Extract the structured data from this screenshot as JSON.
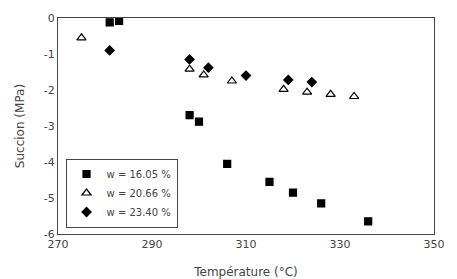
{
  "chart_data": {
    "type": "scatter",
    "xlabel": "Température (°C)",
    "ylabel": "Succion (MPa)",
    "xlim": [
      270,
      350
    ],
    "ylim": [
      -6,
      0
    ],
    "xticks": [
      270,
      290,
      310,
      330,
      350
    ],
    "yticks": [
      0,
      -1,
      -2,
      -3,
      -4,
      -5,
      -6
    ],
    "grid": false,
    "legend": "lower left",
    "series": [
      {
        "name": "w = 16.05 %",
        "color": "black",
        "marker": "square",
        "x": [
          281,
          283,
          298,
          300,
          306,
          315,
          320,
          326,
          336
        ],
        "values": [
          -0.12,
          -0.08,
          -2.7,
          -2.88,
          -4.05,
          -4.55,
          -4.85,
          -5.15,
          -5.65
        ]
      },
      {
        "name": "w = 20.66 %",
        "color": "black",
        "marker": "triangle-open",
        "x": [
          275,
          298,
          301,
          307,
          318,
          323,
          328,
          333
        ],
        "values": [
          -0.55,
          -1.42,
          -1.58,
          -1.75,
          -1.98,
          -2.06,
          -2.12,
          -2.18
        ]
      },
      {
        "name": "w = 23.40 %",
        "color": "black",
        "marker": "diamond",
        "x": [
          281,
          298,
          302,
          310,
          319,
          324
        ],
        "values": [
          -0.9,
          -1.15,
          -1.38,
          -1.6,
          -1.72,
          -1.78
        ]
      }
    ]
  }
}
